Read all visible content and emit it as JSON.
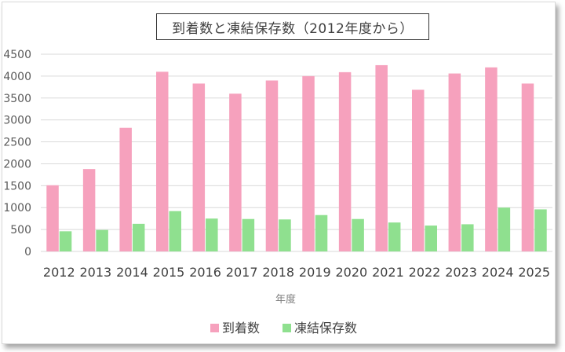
{
  "chart_data": {
    "type": "bar",
    "title": "到着数と凍結保存数（2012年度から）",
    "xlabel": "年度",
    "ylabel": "",
    "ylim": [
      0,
      4500
    ],
    "yticks": [
      0,
      500,
      1000,
      1500,
      2000,
      2500,
      3000,
      3500,
      4000,
      4500
    ],
    "grid": true,
    "legend_position": "bottom",
    "categories": [
      "2012",
      "2013",
      "2014",
      "2015",
      "2016",
      "2017",
      "2018",
      "2019",
      "2020",
      "2021",
      "2022",
      "2023",
      "2024",
      "2025"
    ],
    "series": [
      {
        "name": "到着数",
        "color": "#f6a1bd",
        "values": [
          1510,
          1880,
          2820,
          4100,
          3830,
          3600,
          3900,
          4000,
          4090,
          4250,
          3690,
          4060,
          4200,
          3830
        ]
      },
      {
        "name": "凍結保存数",
        "color": "#8fe08f",
        "values": [
          460,
          490,
          630,
          920,
          750,
          740,
          730,
          830,
          740,
          660,
          590,
          620,
          1000,
          960
        ]
      }
    ]
  }
}
